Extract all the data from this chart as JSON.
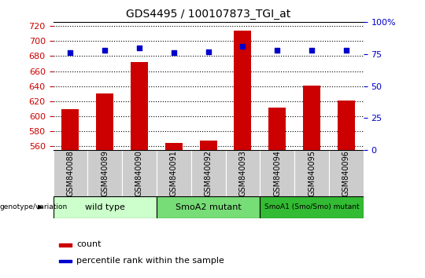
{
  "title": "GDS4495 / 100107873_TGI_at",
  "samples": [
    "GSM840088",
    "GSM840089",
    "GSM840090",
    "GSM840091",
    "GSM840092",
    "GSM840093",
    "GSM840094",
    "GSM840095",
    "GSM840096"
  ],
  "counts": [
    609,
    630,
    672,
    565,
    568,
    714,
    612,
    641,
    621
  ],
  "percentiles": [
    76,
    78,
    80,
    76,
    77,
    81,
    78,
    78,
    78
  ],
  "ylim_left": [
    555,
    725
  ],
  "ylim_right": [
    0,
    100
  ],
  "yticks_left": [
    560,
    580,
    600,
    620,
    640,
    660,
    680,
    700,
    720
  ],
  "yticks_right": [
    0,
    25,
    50,
    75,
    100
  ],
  "groups": [
    {
      "label": "wild type",
      "indices": [
        0,
        1,
        2
      ],
      "color": "#ccffcc"
    },
    {
      "label": "SmoA2 mutant",
      "indices": [
        3,
        4,
        5
      ],
      "color": "#77dd77"
    },
    {
      "label": "SmoA1 (Smo/Smo) mutant",
      "indices": [
        6,
        7,
        8
      ],
      "color": "#33bb33"
    }
  ],
  "bar_color": "#cc0000",
  "percentile_color": "#0000cc",
  "bar_width": 0.5,
  "grid_color": "#000000",
  "tick_bg_color": "#cccccc",
  "legend_count_label": "count",
  "legend_pct_label": "percentile rank within the sample",
  "genotype_label": "genotype/variation"
}
